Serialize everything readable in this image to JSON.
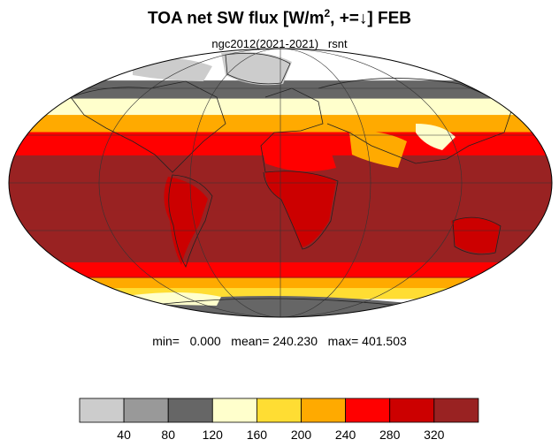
{
  "title": {
    "prefix": "TOA net SW flux [W/m",
    "superscript": "2",
    "suffix": ", +=↓]  FEB"
  },
  "subtitle": "ngc2012(2021-2021)   rsnt",
  "stats": "min=   0.000   mean= 240.230   max= 401.503",
  "colorbar": {
    "colors": [
      "#cccccc",
      "#999999",
      "#666666",
      "#ffffcc",
      "#ffdd33",
      "#ffaa00",
      "#ff0000",
      "#cc0000",
      "#992222"
    ],
    "tick_labels": [
      "40",
      "80",
      "120",
      "160",
      "200",
      "240",
      "280",
      "320"
    ]
  },
  "map": {
    "projection": "mollweide",
    "variable": "rsnt",
    "month": "FEB",
    "bands": [
      {
        "lat_from": 90,
        "lat_to": 60,
        "color": "#999999"
      },
      {
        "lat_from": 60,
        "lat_to": 48,
        "color": "#666666"
      },
      {
        "lat_from": 48,
        "lat_to": 38,
        "color": "#ffffcc"
      },
      {
        "lat_from": 38,
        "lat_to": 28,
        "color": "#ffaa00"
      },
      {
        "lat_from": 28,
        "lat_to": 15,
        "color": "#ff0000"
      },
      {
        "lat_from": 15,
        "lat_to": -15,
        "color": "#992222"
      },
      {
        "lat_from": -15,
        "lat_to": -45,
        "color": "#992222"
      },
      {
        "lat_from": -45,
        "lat_to": -55,
        "color": "#ff0000"
      },
      {
        "lat_from": -55,
        "lat_to": -62,
        "color": "#ffaa00"
      },
      {
        "lat_from": -62,
        "lat_to": -70,
        "color": "#ffdd33"
      },
      {
        "lat_from": -70,
        "lat_to": -90,
        "color": "#666666"
      }
    ]
  }
}
